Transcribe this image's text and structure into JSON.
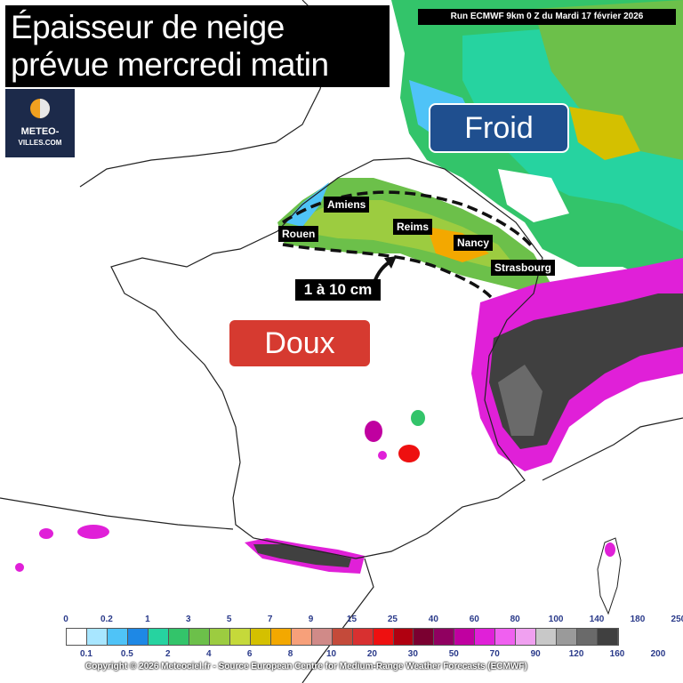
{
  "title": {
    "line1": "Épaisseur de neige",
    "line2": "prévue mercredi matin"
  },
  "run_info": "Run ECMWF 9km 0 Z du Mardi 17 février 2026",
  "logo": {
    "line1": "METEO-",
    "line2": "VILLES.COM"
  },
  "zones": {
    "cold_label": "Froid",
    "mild_label": "Doux"
  },
  "cities": [
    "Amiens",
    "Rouen",
    "Reims",
    "Nancy",
    "Strasbourg"
  ],
  "snow_band_label": "1 à 10 cm",
  "legend": {
    "upper_ticks": [
      "0",
      "0.2",
      "1",
      "3",
      "5",
      "7",
      "9",
      "15",
      "25",
      "40",
      "60",
      "80",
      "100",
      "140",
      "180",
      "250"
    ],
    "lower_ticks": [
      "0.1",
      "0.5",
      "2",
      "4",
      "6",
      "8",
      "10",
      "20",
      "30",
      "50",
      "70",
      "90",
      "120",
      "160",
      "200"
    ],
    "colors": [
      "#ffffff",
      "#a8e6ff",
      "#4fc3f7",
      "#1e88e5",
      "#26d3a0",
      "#33c46a",
      "#6cc04a",
      "#9ccc40",
      "#c5d93a",
      "#d4c000",
      "#f3a800",
      "#f7a07a",
      "#d08a88",
      "#c44a3a",
      "#d83030",
      "#ee1010",
      "#b00010",
      "#7a0030",
      "#900060",
      "#c000a0",
      "#e020d8",
      "#f060f0",
      "#f0a0f0",
      "#c8c8c8",
      "#9a9a9a",
      "#6a6a6a",
      "#404040"
    ]
  },
  "copyright": "Copyright © 2026 Meteociel.fr - Source European Centre for Medium-Range Weather Forecasts (ECMWF)"
}
